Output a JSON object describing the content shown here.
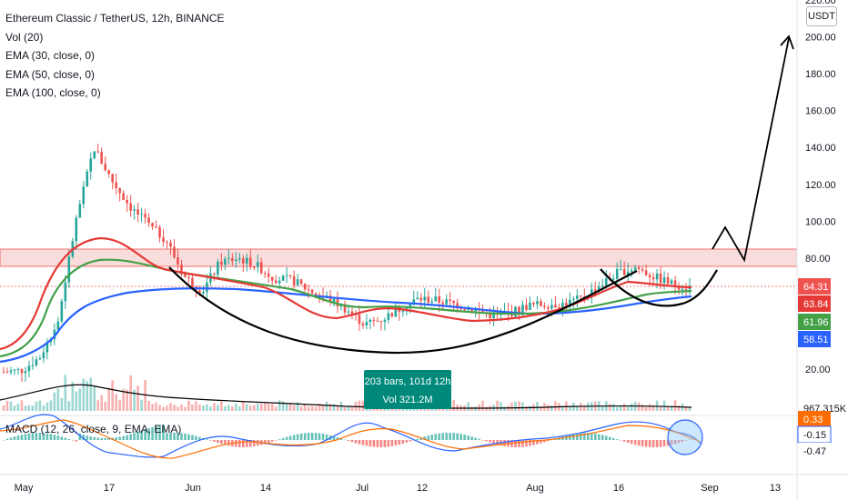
{
  "header": {
    "title": "Ethereum Classic / TetherUS, 12h, BINANCE",
    "indicators": [
      "Vol (20)",
      "EMA (30, close, 0)",
      "EMA (50, close, 0)",
      "EMA (100, close, 0)"
    ],
    "macd_label": "MACD (12, 26, close, 9, EMA, EMA)",
    "currency_unit": "USDT"
  },
  "colors": {
    "up": "#26a69a",
    "down": "#ef5350",
    "ema30": "#e53935",
    "ema50": "#43a047",
    "ema100": "#2962ff",
    "zone": "#ef9a9a",
    "macd": "#2962ff",
    "signal": "#ff6d00"
  },
  "chart_data": {
    "type": "candlestick",
    "symbol": "ETCUSDT",
    "timeframe": "12h",
    "exchange": "BINANCE",
    "y_axis": {
      "ticks": [
        20,
        80,
        100,
        120,
        140,
        160,
        180,
        200,
        220
      ],
      "tick_labels": [
        "20.00",
        "80.00",
        "100.00",
        "120.00",
        "140.00",
        "160.00",
        "180.00",
        "200.00",
        "220.00"
      ]
    },
    "x_axis": {
      "ticks": [
        "May",
        "17",
        "Jun",
        "14",
        "Jul",
        "12",
        "Aug",
        "16",
        "Sep",
        "13"
      ]
    },
    "price_labels": [
      {
        "text": "64.31",
        "color": "#ef5350"
      },
      {
        "text": "63.84",
        "color": "#e53935"
      },
      {
        "text": "61.96",
        "color": "#43a047"
      },
      {
        "text": "58.51",
        "color": "#2962ff"
      },
      {
        "text": "967.315K",
        "color": "#131722"
      }
    ],
    "macd_labels": [
      {
        "text": "0.33",
        "color": "#ff6d00"
      },
      {
        "text": "-0.15",
        "color": "#2962ff"
      },
      {
        "text": "-0.47",
        "color": "#ef5350"
      }
    ],
    "resistance_zone": [
      75,
      85
    ],
    "last_price": 64.31,
    "price_path": [
      {
        "x": "May 1",
        "y": 18
      },
      {
        "x": "May 3",
        "y": 19
      },
      {
        "x": "May 5",
        "y": 26
      },
      {
        "x": "May 7",
        "y": 45
      },
      {
        "x": "May 9",
        "y": 100
      },
      {
        "x": "May 11",
        "y": 140
      },
      {
        "x": "May 13",
        "y": 122
      },
      {
        "x": "May 15",
        "y": 108
      },
      {
        "x": "May 17",
        "y": 98
      },
      {
        "x": "May 19",
        "y": 90
      },
      {
        "x": "May 21",
        "y": 70
      },
      {
        "x": "May 23",
        "y": 62
      },
      {
        "x": "May 25",
        "y": 78
      },
      {
        "x": "May 27",
        "y": 80
      },
      {
        "x": "May 29",
        "y": 76
      },
      {
        "x": "Jun 1",
        "y": 69
      },
      {
        "x": "Jun 5",
        "y": 68
      },
      {
        "x": "Jun 10",
        "y": 62
      },
      {
        "x": "Jun 15",
        "y": 58
      },
      {
        "x": "Jun 18",
        "y": 52
      },
      {
        "x": "Jun 22",
        "y": 44
      },
      {
        "x": "Jun 25",
        "y": 47
      },
      {
        "x": "Jun 28",
        "y": 53
      },
      {
        "x": "Jul 1",
        "y": 58
      },
      {
        "x": "Jul 5",
        "y": 57
      },
      {
        "x": "Jul 9",
        "y": 55
      },
      {
        "x": "Jul 13",
        "y": 52
      },
      {
        "x": "Jul 17",
        "y": 49
      },
      {
        "x": "Jul 21",
        "y": 50
      },
      {
        "x": "Jul 25",
        "y": 54
      },
      {
        "x": "Jul 29",
        "y": 55
      },
      {
        "x": "Aug 2",
        "y": 55
      },
      {
        "x": "Aug 6",
        "y": 58
      },
      {
        "x": "Aug 10",
        "y": 65
      },
      {
        "x": "Aug 14",
        "y": 72
      },
      {
        "x": "Aug 16",
        "y": 75
      },
      {
        "x": "Aug 18",
        "y": 70
      },
      {
        "x": "Aug 21",
        "y": 66
      },
      {
        "x": "Aug 24",
        "y": 64.31
      }
    ],
    "annotations": {
      "measure_label": [
        "203 bars, 101d 12h",
        "Vol 321.2M"
      ],
      "arrow_target": 200
    }
  }
}
